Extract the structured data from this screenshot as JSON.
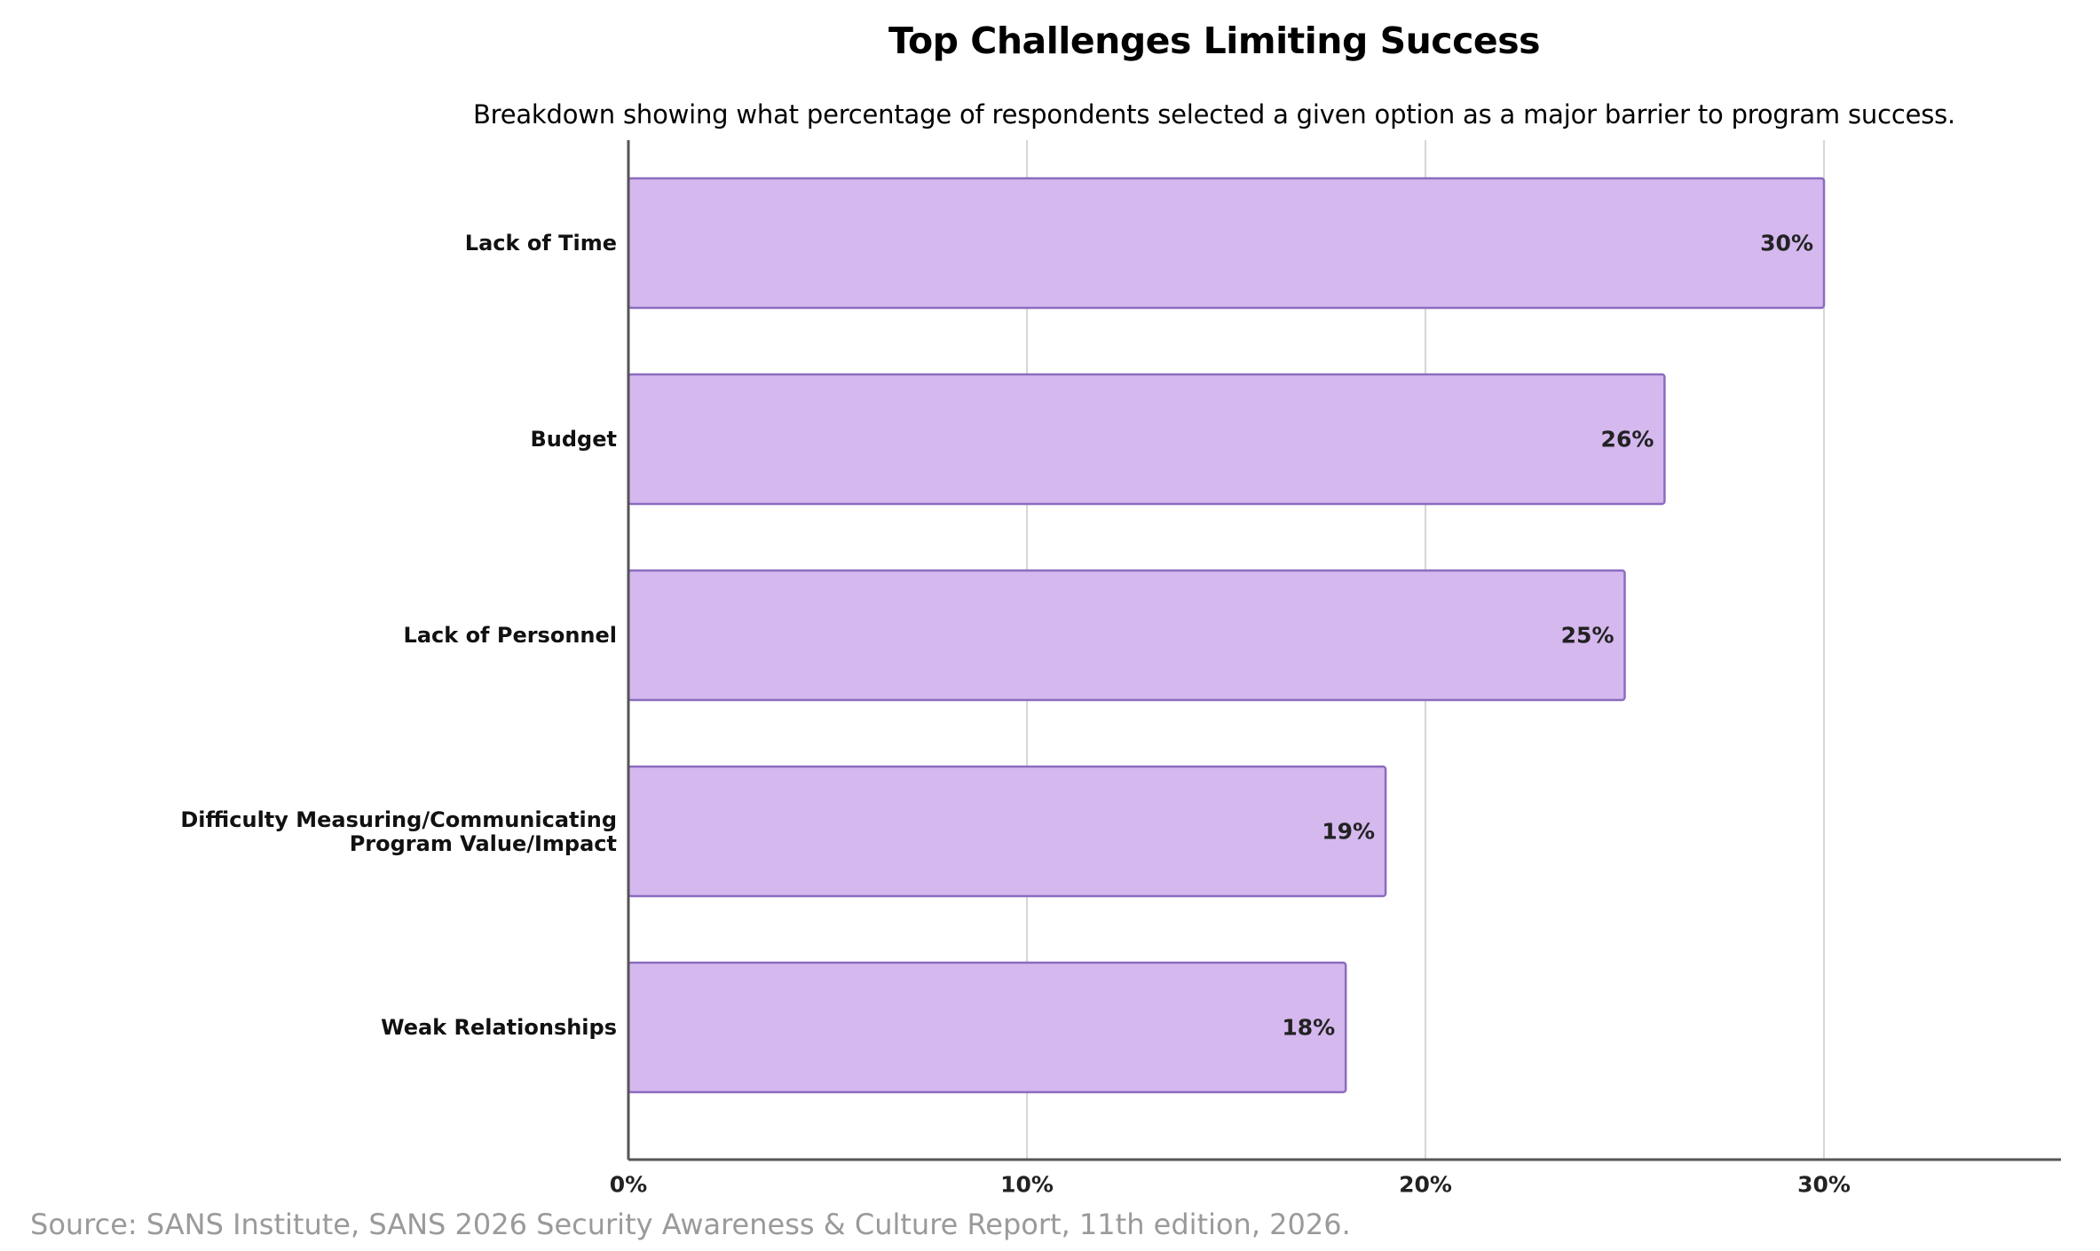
{
  "chart_data": {
    "type": "bar",
    "orientation": "horizontal",
    "title": "Top Challenges Limiting Success",
    "subtitle": "Breakdown showing what percentage of respondents selected a given option as a major barrier to program success.",
    "categories": [
      "Lack of Time",
      "Budget",
      "Lack of Personnel",
      "Difficulty Measuring/Communicating Program Value/Impact",
      "Weak Relationships"
    ],
    "values": [
      30,
      26,
      25,
      19,
      18
    ],
    "data_labels": [
      "30%",
      "26%",
      "25%",
      "19%",
      "18%"
    ],
    "x_ticks": [
      0,
      10,
      20,
      30
    ],
    "x_tick_labels": [
      "0%",
      "10%",
      "20%",
      "30%"
    ],
    "xlim": [
      0,
      36
    ],
    "xlabel": "",
    "ylabel": "",
    "grid": "vertical",
    "legend": "none",
    "colors": {
      "bar_fill": "#d4b8ee",
      "bar_stroke": "#8a6cc0",
      "grid": "#d6d6d6",
      "axis": "#555555"
    }
  },
  "source": "Source: SANS Institute, SANS 2026 Security Awareness & Culture Report, 11th edition, 2026."
}
